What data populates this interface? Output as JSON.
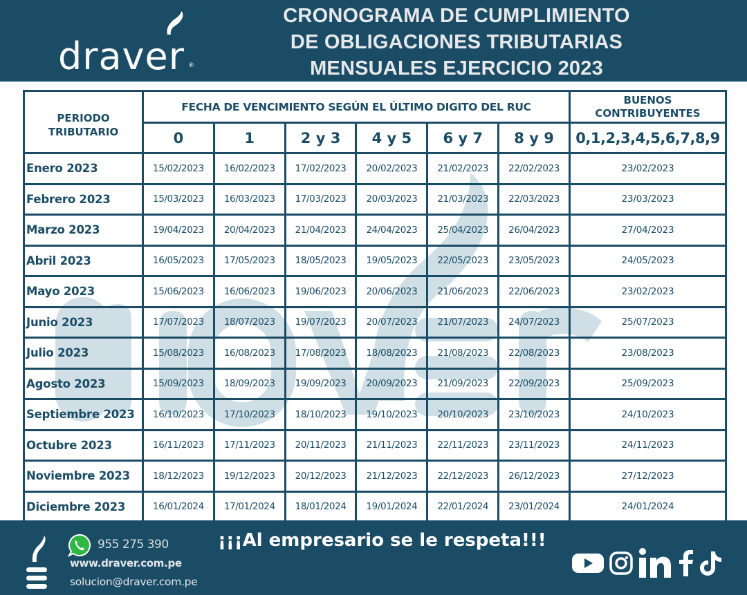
{
  "header": {
    "brand": "draver",
    "brand_reg": "®",
    "title_lines": [
      "CRONOGRAMA DE CUMPLIMIENTO",
      "DE OBLIGACIONES TRIBUTARIAS",
      "MENSUALES EJERCICIO 2023"
    ]
  },
  "colors": {
    "brand_dark": "#1b4c66",
    "watermark": "#c9dbe2",
    "text_light": "#e6e8ea"
  },
  "table": {
    "period_header": "PERIODO TRIBUTARIO",
    "period_header_lines": [
      "PERIODO",
      "TRIBUTARIO"
    ],
    "due_header": "FECHA DE VENCIMIENTO SEGÚN EL ÚLTIMO DIGITO DEL RUC",
    "good_header_lines": [
      "BUENOS",
      "CONTRIBUYENTES"
    ],
    "digit_columns": [
      "0",
      "1",
      "2 y 3",
      "4 y 5",
      "6 y 7",
      "8 y 9"
    ],
    "good_digits": "0,1,2,3,4,5,6,7,8,9",
    "rows": [
      {
        "period": "Enero 2023",
        "dates": [
          "15/02/2023",
          "16/02/2023",
          "17/02/2023",
          "20/02/2023",
          "21/02/2023",
          "22/02/2023"
        ],
        "good": "23/02/2023"
      },
      {
        "period": "Febrero 2023",
        "dates": [
          "15/03/2023",
          "16/03/2023",
          "17/03/2023",
          "20/03/2023",
          "21/03/2023",
          "22/03/2023"
        ],
        "good": "23/03/2023"
      },
      {
        "period": "Marzo 2023",
        "dates": [
          "19/04/2023",
          "20/04/2023",
          "21/04/2023",
          "24/04/2023",
          "25/04/2023",
          "26/04/2023"
        ],
        "good": "27/04/2023"
      },
      {
        "period": "Abril 2023",
        "dates": [
          "16/05/2023",
          "17/05/2023",
          "18/05/2023",
          "19/05/2023",
          "22/05/2023",
          "23/05/2023"
        ],
        "good": "24/05/2023"
      },
      {
        "period": "Mayo 2023",
        "dates": [
          "15/06/2023",
          "16/06/2023",
          "19/06/2023",
          "20/06/2023",
          "21/06/2023",
          "22/06/2023"
        ],
        "good": "23/02/2023"
      },
      {
        "period": "Junio 2023",
        "dates": [
          "17/07/2023",
          "18/07/2023",
          "19/07/2023",
          "20/07/2023",
          "21/07/2023",
          "24/07/2023"
        ],
        "good": "25/07/2023"
      },
      {
        "period": "Julio 2023",
        "dates": [
          "15/08/2023",
          "16/08/2023",
          "17/08/2023",
          "18/08/2023",
          "21/08/2023",
          "22/08/2023"
        ],
        "good": "23/08/2023"
      },
      {
        "period": "Agosto 2023",
        "dates": [
          "15/09/2023",
          "18/09/2023",
          "19/09/2023",
          "20/09/2023",
          "21/09/2023",
          "22/09/2023"
        ],
        "good": "25/09/2023"
      },
      {
        "period": "Septiembre 2023",
        "dates": [
          "16/10/2023",
          "17/10/2023",
          "18/10/2023",
          "19/10/2023",
          "20/10/2023",
          "23/10/2023"
        ],
        "good": "24/10/2023"
      },
      {
        "period": "Octubre 2023",
        "dates": [
          "16/11/2023",
          "17/11/2023",
          "20/11/2023",
          "21/11/2023",
          "22/11/2023",
          "23/11/2023"
        ],
        "good": "24/11/2023"
      },
      {
        "period": "Noviembre 2023",
        "dates": [
          "18/12/2023",
          "19/12/2023",
          "20/12/2023",
          "21/12/2023",
          "22/12/2023",
          "26/12/2023"
        ],
        "good": "27/12/2023"
      },
      {
        "period": "Diciembre 2023",
        "dates": [
          "16/01/2024",
          "17/01/2024",
          "18/01/2024",
          "19/01/2024",
          "22/01/2024",
          "23/01/2024"
        ],
        "good": "24/01/2024"
      }
    ]
  },
  "footer": {
    "phone": "955 275 390",
    "website": "www.draver.com.pe",
    "email": "solucion@draver.com.pe",
    "slogan": "¡¡¡Al empresario se le respeta!!!",
    "social_icons": [
      "youtube-icon",
      "instagram-icon",
      "linkedin-icon",
      "facebook-icon",
      "tiktok-icon"
    ]
  }
}
